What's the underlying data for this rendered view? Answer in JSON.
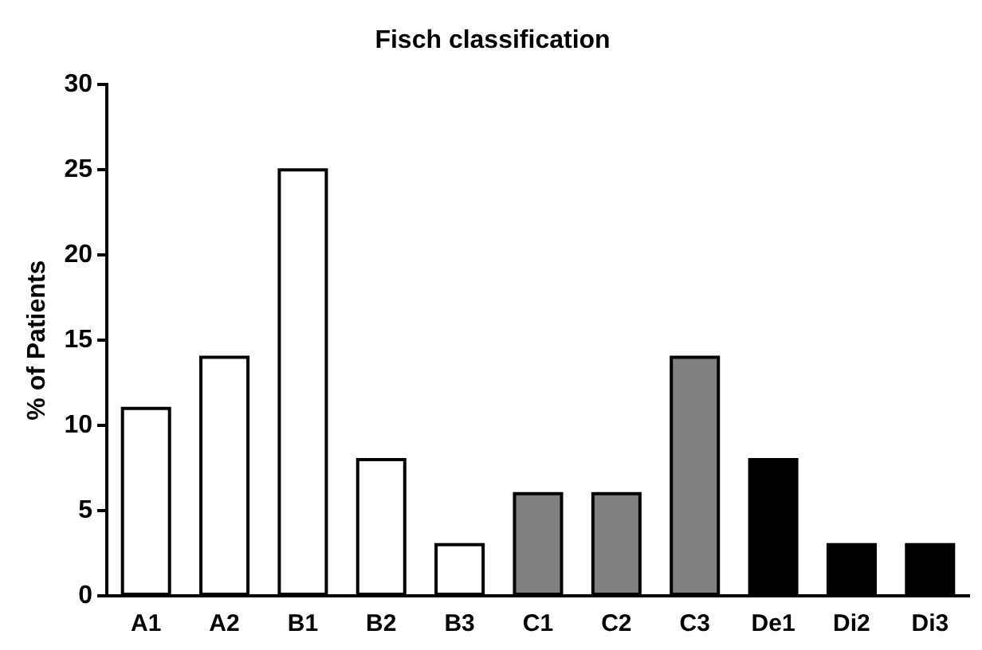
{
  "chart_data": {
    "type": "bar",
    "title": "Fisch classification",
    "ylabel": "% of Patients",
    "categories": [
      "A1",
      "A2",
      "B1",
      "B2",
      "B3",
      "C1",
      "C2",
      "C3",
      "De1",
      "Di2",
      "Di3"
    ],
    "values": [
      11,
      14,
      25,
      8,
      3,
      6,
      6,
      14,
      8,
      3,
      3
    ],
    "colors": [
      "#ffffff",
      "#ffffff",
      "#ffffff",
      "#ffffff",
      "#ffffff",
      "#808080",
      "#808080",
      "#808080",
      "#000000",
      "#000000",
      "#000000"
    ],
    "ylim": [
      0,
      30
    ],
    "yticks": [
      0,
      5,
      10,
      15,
      20,
      25,
      30
    ],
    "grid": false,
    "legend": false
  }
}
